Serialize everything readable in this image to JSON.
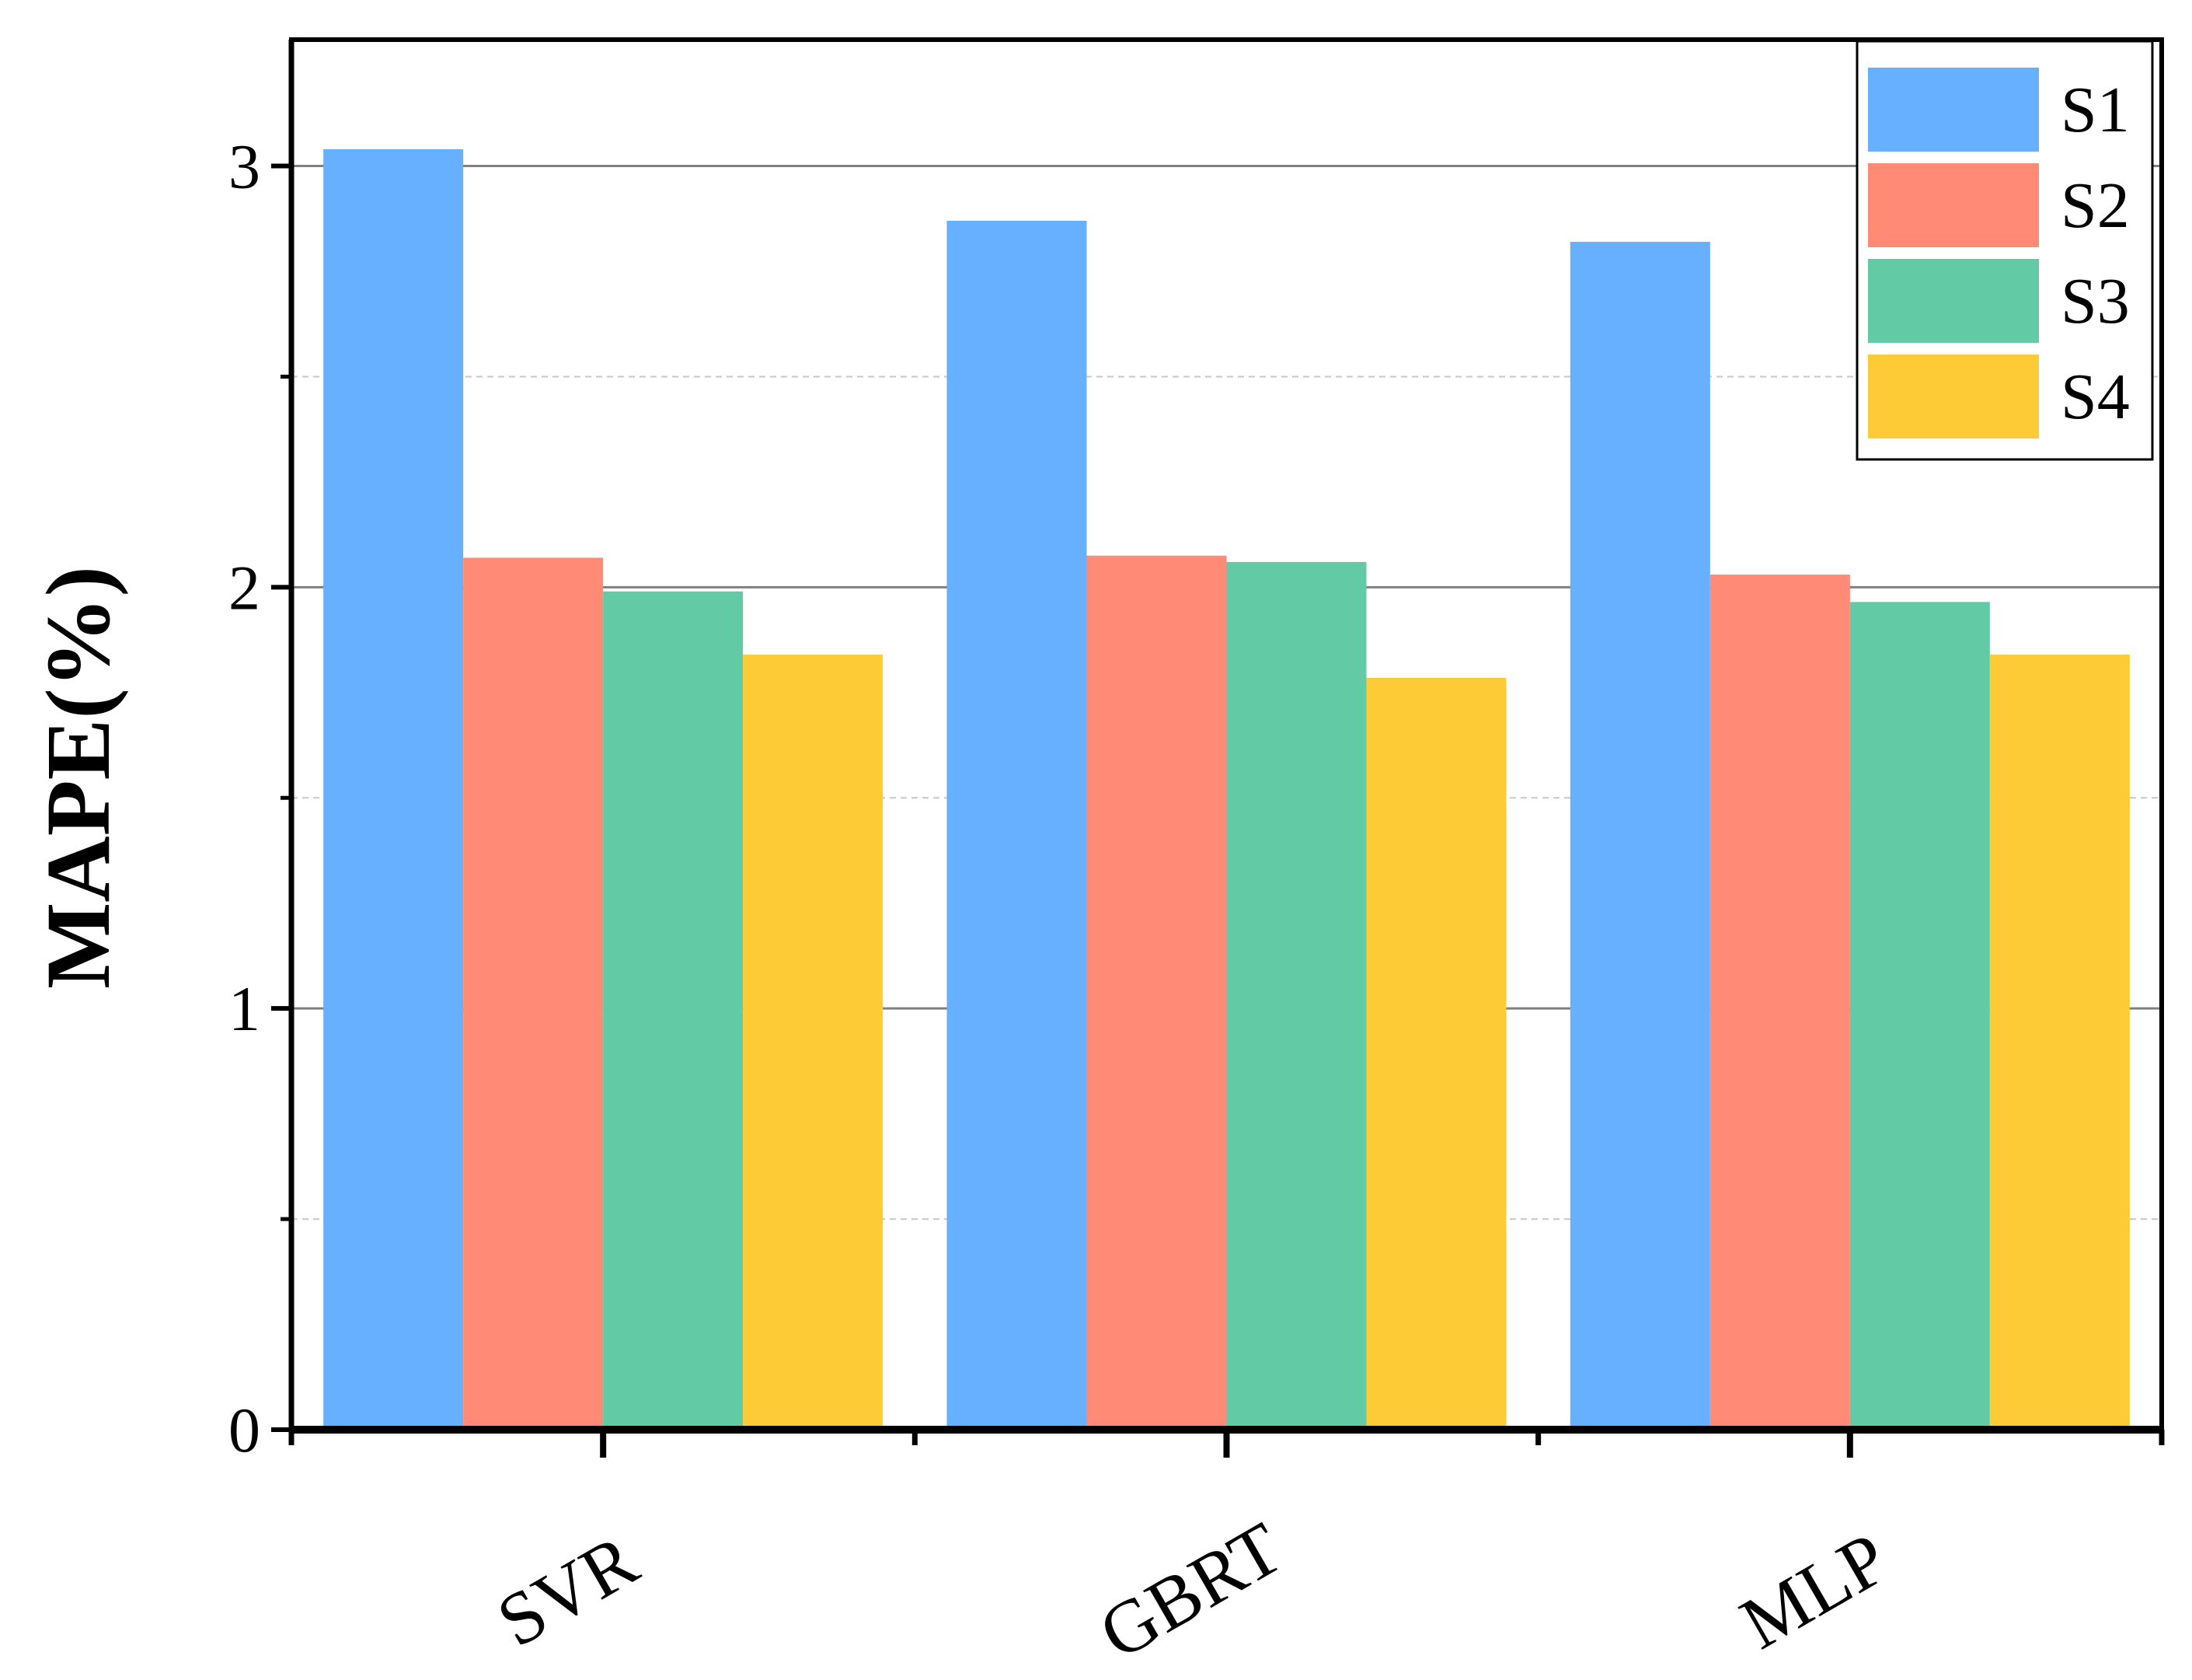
{
  "chart_data": {
    "type": "bar",
    "title": "",
    "xlabel": "",
    "ylabel": "MAPE(%)",
    "categories": [
      "SVR",
      "GBRT",
      "MLP"
    ],
    "series": [
      {
        "name": "S1",
        "color": "#66b0ff",
        "values": [
          3.04,
          2.87,
          2.82
        ]
      },
      {
        "name": "S2",
        "color": "#ff8a76",
        "values": [
          2.07,
          2.075,
          2.03
        ]
      },
      {
        "name": "S3",
        "color": "#62cba6",
        "values": [
          1.99,
          2.06,
          1.965
        ]
      },
      {
        "name": "S4",
        "color": "#fdcb35",
        "values": [
          1.84,
          1.785,
          1.84
        ]
      }
    ],
    "ylim": [
      0,
      3.3
    ],
    "yticks": [
      0,
      1,
      2,
      3
    ],
    "yminor": [
      0.5,
      1.5,
      2.5
    ],
    "grid": true,
    "legend": "top-right"
  },
  "colors": {
    "major_grid": "#808080",
    "minor_grid": "#c8c8c8",
    "axis": "#000000"
  }
}
